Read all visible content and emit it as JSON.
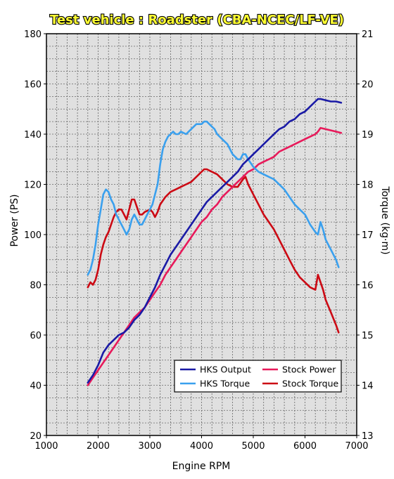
{
  "chart_data": {
    "type": "line",
    "title": "Test vehicle : Roadster (CBA-NCEC/LF-VE)",
    "xlabel": "Engine RPM",
    "ylabel": "Power (PS)",
    "y2label": "Torque (kg·m)",
    "xlim": [
      1000,
      7000
    ],
    "ylim": [
      20,
      180
    ],
    "y2lim": [
      13,
      21
    ],
    "xticks": [
      1000,
      2000,
      3000,
      4000,
      5000,
      6000,
      7000
    ],
    "yticks": [
      20,
      40,
      60,
      80,
      100,
      120,
      140,
      160,
      180
    ],
    "y2ticks": [
      13,
      14,
      15,
      16,
      17,
      18,
      19,
      20,
      21
    ],
    "grid": true,
    "legend_position": "bottom-right",
    "colors": {
      "title": "#ffff33",
      "plot_background": "#e0e0e0",
      "grid": "#666666",
      "hks_output": "#1a1aa6",
      "hks_torque": "#3aa0ee",
      "stock_power": "#e8195a",
      "stock_torque": "#cc0a14"
    },
    "series": [
      {
        "key": "hks_output",
        "name": "HKS Output",
        "axis": "left",
        "x": [
          1800,
          1900,
          2000,
          2100,
          2200,
          2300,
          2400,
          2500,
          2600,
          2700,
          2800,
          2900,
          3000,
          3100,
          3200,
          3300,
          3400,
          3500,
          3600,
          3700,
          3800,
          3900,
          4000,
          4100,
          4200,
          4300,
          4400,
          4500,
          4600,
          4700,
          4800,
          4900,
          5000,
          5100,
          5200,
          5300,
          5400,
          5500,
          5600,
          5700,
          5800,
          5900,
          6000,
          6100,
          6200,
          6250,
          6300,
          6400,
          6500,
          6600,
          6700
        ],
        "values": [
          41,
          44,
          48,
          53,
          56,
          58,
          60,
          61,
          63,
          66,
          68,
          71,
          75,
          79,
          84,
          88,
          92,
          95,
          98,
          101,
          104,
          107,
          110,
          113,
          115,
          117,
          119,
          121,
          123,
          125,
          128,
          130,
          132,
          134,
          136,
          138,
          140,
          142,
          143,
          145,
          146,
          148,
          149,
          151,
          153,
          154,
          154,
          153.5,
          153,
          153,
          152.5
        ]
      },
      {
        "key": "hks_torque",
        "name": "HKS Torque",
        "axis": "right",
        "x": [
          1800,
          1850,
          1900,
          1950,
          2000,
          2050,
          2100,
          2150,
          2200,
          2250,
          2300,
          2350,
          2400,
          2450,
          2500,
          2550,
          2600,
          2650,
          2700,
          2750,
          2800,
          2850,
          2900,
          2950,
          3000,
          3050,
          3100,
          3150,
          3200,
          3250,
          3300,
          3350,
          3400,
          3450,
          3500,
          3550,
          3600,
          3700,
          3800,
          3900,
          4000,
          4050,
          4100,
          4150,
          4200,
          4250,
          4300,
          4400,
          4500,
          4600,
          4700,
          4750,
          4800,
          4850,
          4900,
          5000,
          5100,
          5200,
          5300,
          5400,
          5500,
          5600,
          5700,
          5800,
          5900,
          6000,
          6100,
          6200,
          6250,
          6300,
          6350,
          6400,
          6500,
          6600,
          6650
        ],
        "values": [
          16.2,
          16.3,
          16.5,
          16.8,
          17.2,
          17.5,
          17.8,
          17.9,
          17.85,
          17.7,
          17.6,
          17.4,
          17.3,
          17.2,
          17.1,
          17.0,
          17.1,
          17.3,
          17.4,
          17.3,
          17.2,
          17.2,
          17.3,
          17.4,
          17.5,
          17.6,
          17.8,
          18.0,
          18.4,
          18.7,
          18.85,
          18.95,
          19.0,
          19.05,
          19.0,
          19.0,
          19.05,
          19.0,
          19.1,
          19.2,
          19.2,
          19.25,
          19.25,
          19.2,
          19.15,
          19.1,
          19.0,
          18.9,
          18.8,
          18.6,
          18.5,
          18.5,
          18.6,
          18.6,
          18.5,
          18.35,
          18.25,
          18.2,
          18.15,
          18.1,
          18.0,
          17.9,
          17.75,
          17.6,
          17.5,
          17.4,
          17.2,
          17.05,
          17.0,
          17.25,
          17.1,
          16.9,
          16.7,
          16.5,
          16.35
        ]
      },
      {
        "key": "stock_power",
        "name": "Stock Power",
        "axis": "left",
        "x": [
          1800,
          1900,
          2000,
          2100,
          2200,
          2300,
          2400,
          2500,
          2600,
          2700,
          2800,
          2900,
          3000,
          3100,
          3200,
          3300,
          3400,
          3500,
          3600,
          3700,
          3800,
          3900,
          4000,
          4100,
          4200,
          4300,
          4400,
          4500,
          4600,
          4700,
          4800,
          4900,
          5000,
          5100,
          5200,
          5300,
          5400,
          5500,
          5600,
          5700,
          5800,
          5900,
          6000,
          6100,
          6200,
          6250,
          6300,
          6400,
          6500,
          6600,
          6700
        ],
        "values": [
          40,
          43,
          46,
          49,
          52,
          55,
          58,
          61,
          64,
          67,
          69,
          71,
          74,
          77,
          80,
          84,
          87,
          90,
          93,
          96,
          99,
          102,
          105,
          107,
          110,
          112,
          115,
          117,
          119,
          121,
          123,
          125,
          126,
          128,
          129,
          130,
          131,
          133,
          134,
          135,
          136,
          137,
          138,
          139,
          140,
          141,
          142.5,
          142,
          141.5,
          141,
          140.5
        ]
      },
      {
        "key": "stock_torque",
        "name": "Stock Torque",
        "axis": "right",
        "x": [
          1800,
          1850,
          1900,
          1950,
          2000,
          2050,
          2100,
          2150,
          2200,
          2250,
          2300,
          2350,
          2400,
          2450,
          2500,
          2550,
          2600,
          2650,
          2700,
          2750,
          2800,
          2850,
          2900,
          3000,
          3050,
          3100,
          3150,
          3200,
          3300,
          3400,
          3500,
          3600,
          3700,
          3800,
          3900,
          4000,
          4050,
          4100,
          4200,
          4300,
          4400,
          4500,
          4600,
          4700,
          4800,
          4850,
          4900,
          5000,
          5100,
          5200,
          5300,
          5400,
          5500,
          5600,
          5700,
          5800,
          5900,
          6000,
          6100,
          6200,
          6250,
          6300,
          6350,
          6400,
          6500,
          6600,
          6650
        ],
        "values": [
          15.95,
          16.05,
          16.0,
          16.1,
          16.3,
          16.6,
          16.8,
          16.95,
          17.05,
          17.2,
          17.35,
          17.45,
          17.5,
          17.5,
          17.4,
          17.3,
          17.5,
          17.7,
          17.7,
          17.55,
          17.4,
          17.4,
          17.45,
          17.5,
          17.45,
          17.35,
          17.45,
          17.6,
          17.75,
          17.85,
          17.9,
          17.95,
          18.0,
          18.05,
          18.15,
          18.25,
          18.3,
          18.3,
          18.25,
          18.2,
          18.1,
          18.0,
          17.95,
          17.95,
          18.1,
          18.15,
          18.0,
          17.8,
          17.6,
          17.4,
          17.25,
          17.1,
          16.9,
          16.7,
          16.5,
          16.3,
          16.15,
          16.05,
          15.95,
          15.9,
          16.2,
          16.05,
          15.9,
          15.7,
          15.45,
          15.2,
          15.05
        ]
      }
    ]
  }
}
